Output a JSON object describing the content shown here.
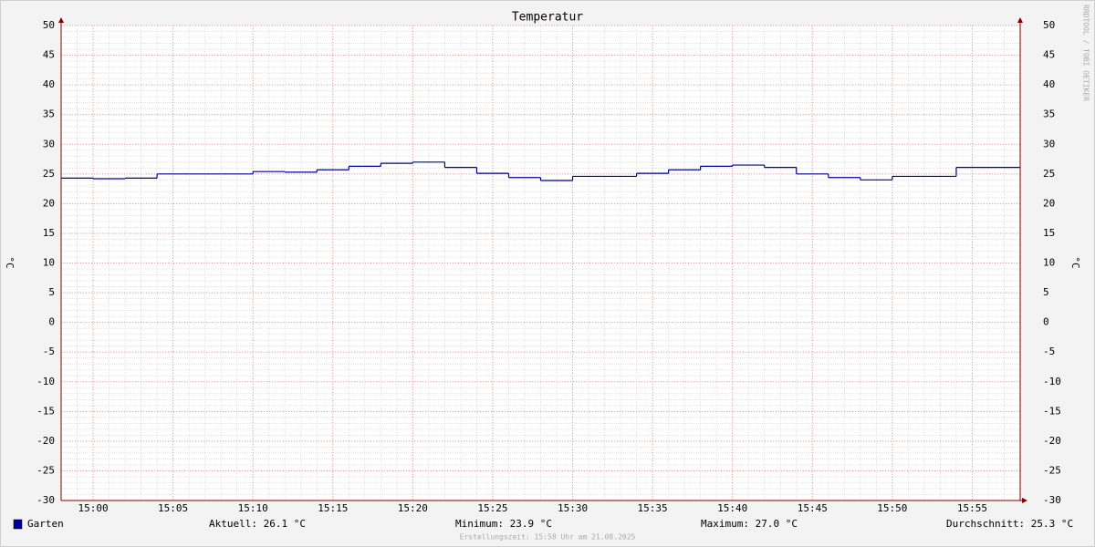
{
  "chart_data": {
    "type": "line",
    "step": true,
    "title": "Temperatur",
    "y_label": "°C",
    "y2_label": "°C",
    "x": [
      "14:58",
      "15:00",
      "15:02",
      "15:04",
      "15:06",
      "15:08",
      "15:10",
      "15:12",
      "15:14",
      "15:16",
      "15:18",
      "15:20",
      "15:22",
      "15:24",
      "15:26",
      "15:28",
      "15:30",
      "15:32",
      "15:34",
      "15:36",
      "15:38",
      "15:40",
      "15:42",
      "15:44",
      "15:46",
      "15:48",
      "15:50",
      "15:52",
      "15:54",
      "15:56"
    ],
    "series": [
      {
        "name": "Garten",
        "color": "#000099",
        "values": [
          24.3,
          24.2,
          24.3,
          25.0,
          25.0,
          25.0,
          25.4,
          25.3,
          25.7,
          26.3,
          26.8,
          27.0,
          26.1,
          25.1,
          24.4,
          23.9,
          24.6,
          24.6,
          25.1,
          25.7,
          26.3,
          26.5,
          26.1,
          25.0,
          24.4,
          24.0,
          24.6,
          24.6,
          26.1,
          26.1
        ]
      }
    ],
    "xlim": [
      "14:58",
      "15:58"
    ],
    "xticks": [
      "15:00",
      "15:05",
      "15:10",
      "15:15",
      "15:20",
      "15:25",
      "15:30",
      "15:35",
      "15:40",
      "15:45",
      "15:50",
      "15:55"
    ],
    "ylim": [
      -30,
      50
    ],
    "yticks": [
      50,
      45,
      40,
      35,
      30,
      25,
      20,
      15,
      10,
      5,
      0,
      -5,
      -10,
      -15,
      -20,
      -25,
      -30
    ],
    "grid": true,
    "stats": [
      "Aktuell: 26.1 °C",
      "Minimum: 23.9 °C",
      "Maximum: 27.0 °C",
      "Durchschnitt: 25.3 °C"
    ],
    "footer": "Erstellungszeit: 15:58 Uhr am 21.08.2025",
    "watermark": "RRDTOOL / TOBI OETIKER"
  }
}
